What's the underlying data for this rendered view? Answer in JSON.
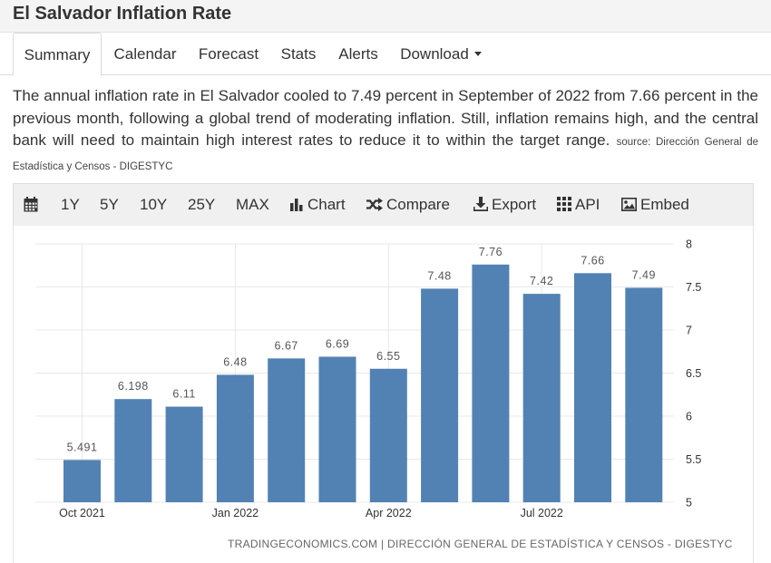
{
  "page": {
    "title": "El Salvador Inflation Rate"
  },
  "tabs": [
    {
      "label": "Summary",
      "active": true
    },
    {
      "label": "Calendar"
    },
    {
      "label": "Forecast"
    },
    {
      "label": "Stats"
    },
    {
      "label": "Alerts"
    },
    {
      "label": "Download"
    }
  ],
  "summary": {
    "text": "The annual inflation rate in El Salvador cooled to 7.49 percent in September of 2022 from 7.66 percent in the previous month, following a global trend of moderating inflation. Still, inflation remains high, and the central bank will need to maintain high interest rates to reduce it to within the target range.",
    "source": "source: Dirección General de Estadística y Censos - DIGESTYC"
  },
  "toolbar": {
    "ranges": [
      "1Y",
      "5Y",
      "10Y",
      "25Y",
      "MAX"
    ],
    "chart": "Chart",
    "compare": "Compare",
    "export": "Export",
    "api": "API",
    "embed": "Embed"
  },
  "chart_data": {
    "type": "bar",
    "categories": [
      "Oct 2021",
      "Nov 2021",
      "Dec 2021",
      "Jan 2022",
      "Feb 2022",
      "Mar 2022",
      "Apr 2022",
      "May 2022",
      "Jun 2022",
      "Jul 2022",
      "Aug 2022",
      "Sep 2022"
    ],
    "values": [
      5.491,
      6.198,
      6.11,
      6.48,
      6.67,
      6.69,
      6.55,
      7.48,
      7.76,
      7.42,
      7.66,
      7.49
    ],
    "value_labels": [
      "5.491",
      "6.198",
      "6.11",
      "6.48",
      "6.67",
      "6.69",
      "6.55",
      "7.48",
      "7.76",
      "7.42",
      "7.66",
      "7.49"
    ],
    "x_tick_labels": [
      "Oct 2021",
      "Jan 2022",
      "Apr 2022",
      "Jul 2022"
    ],
    "x_tick_indices": [
      0,
      3,
      6,
      9
    ],
    "y_ticks": [
      5,
      5.5,
      6,
      6.5,
      7,
      7.5,
      8
    ],
    "y_tick_labels": [
      "5",
      "5.5",
      "6",
      "6.5",
      "7",
      "7.5",
      "8"
    ],
    "ylim": [
      5,
      8
    ],
    "y_axis_side": "right",
    "grid": true,
    "bar_color": "#5282b3",
    "title": "",
    "xlabel": "",
    "ylabel": "",
    "credit": "TRADINGECONOMICS.COM | DIRECCIÓN GENERAL DE ESTADÍSTICA Y CENSOS - DIGESTYC"
  }
}
